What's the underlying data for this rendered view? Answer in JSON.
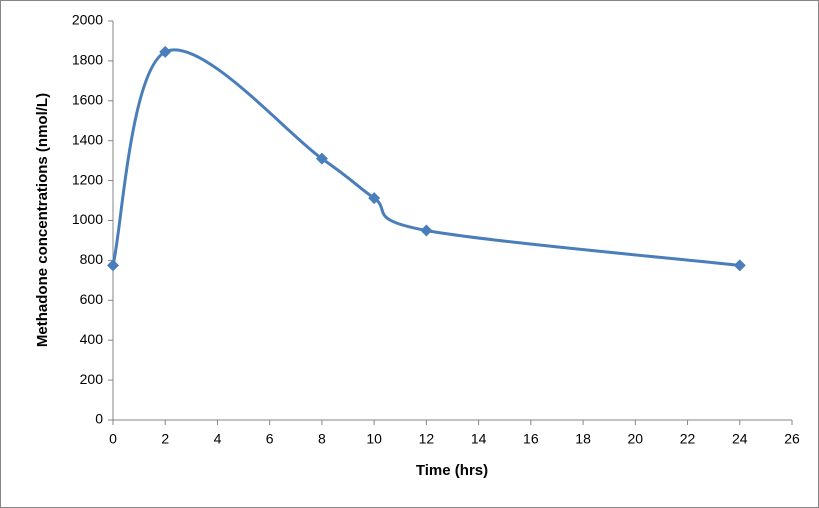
{
  "chart_data": {
    "type": "line",
    "x_label": "Time (hrs)",
    "y_label": "Methadone concentrations (nmol/L)",
    "x": [
      0,
      2,
      8,
      10,
      12,
      24
    ],
    "series": [
      {
        "color": "#4a7ebb",
        "values": [
          775,
          1845,
          1310,
          1112,
          950,
          775
        ]
      }
    ],
    "xlim": [
      0,
      26
    ],
    "xticks": [
      0,
      2,
      4,
      6,
      8,
      10,
      12,
      14,
      16,
      18,
      20,
      22,
      24,
      26
    ],
    "ylim": [
      0,
      2000
    ],
    "yticks": [
      0,
      200,
      400,
      600,
      800,
      1000,
      1200,
      1400,
      1600,
      1800,
      2000
    ],
    "smooth": true,
    "grid": false
  }
}
